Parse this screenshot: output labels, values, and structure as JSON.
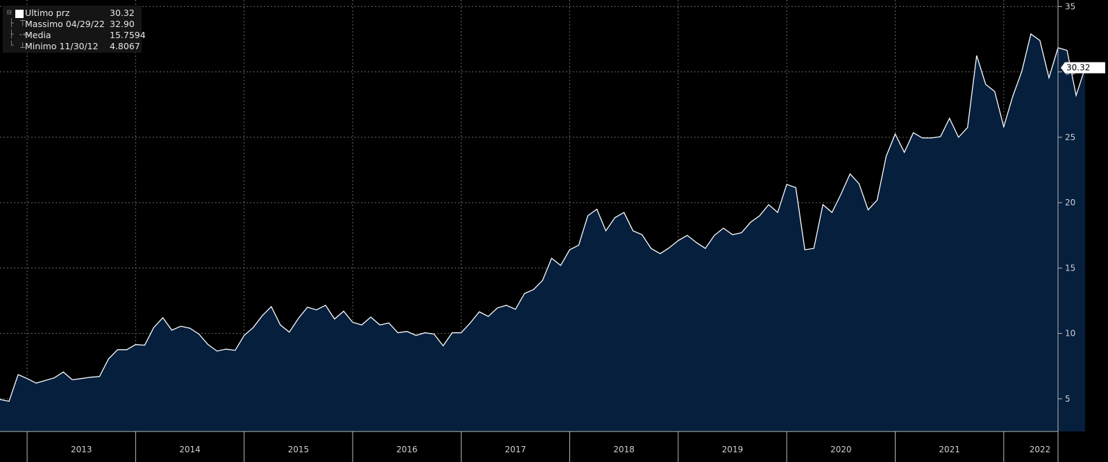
{
  "legend": {
    "last": {
      "label": "Ultimo prz",
      "value": "30.32"
    },
    "high": {
      "label": "Massimo 04/29/22",
      "value": "32.90"
    },
    "mean": {
      "label": "Media",
      "value": "15.7594"
    },
    "low": {
      "label": "Minimo 11/30/12",
      "value": "4.8067"
    }
  },
  "colors": {
    "background": "#000000",
    "line": "#ffffff",
    "area": "#061f3d",
    "grid": "#6b6b6b",
    "axis_text": "#d0d0d0"
  },
  "chart_data": {
    "type": "area",
    "x_label": "",
    "y_label": "",
    "x_ticks": [
      "2013",
      "2014",
      "2015",
      "2016",
      "2017",
      "2018",
      "2019",
      "2020",
      "2021",
      "2022"
    ],
    "y_ticks": [
      5,
      10,
      15,
      20,
      25,
      30,
      35
    ],
    "ylim": [
      2.5,
      35.5
    ],
    "xlim": [
      "2012-10",
      "2022-06"
    ],
    "grid": true,
    "y_axis_side": "right",
    "last_value_label": "30.32",
    "series": [
      {
        "name": "Ultimo prz",
        "x": [
          "2012-10",
          "2012-11",
          "2012-12",
          "2013-01",
          "2013-02",
          "2013-03",
          "2013-04",
          "2013-05",
          "2013-06",
          "2013-07",
          "2013-08",
          "2013-09",
          "2013-10",
          "2013-11",
          "2013-12",
          "2014-01",
          "2014-02",
          "2014-03",
          "2014-04",
          "2014-05",
          "2014-06",
          "2014-07",
          "2014-08",
          "2014-09",
          "2014-10",
          "2014-11",
          "2014-12",
          "2015-01",
          "2015-02",
          "2015-03",
          "2015-04",
          "2015-05",
          "2015-06",
          "2015-07",
          "2015-08",
          "2015-09",
          "2015-10",
          "2015-11",
          "2015-12",
          "2016-01",
          "2016-02",
          "2016-03",
          "2016-04",
          "2016-05",
          "2016-06",
          "2016-07",
          "2016-08",
          "2016-09",
          "2016-10",
          "2016-11",
          "2016-12",
          "2017-01",
          "2017-02",
          "2017-03",
          "2017-04",
          "2017-05",
          "2017-06",
          "2017-07",
          "2017-08",
          "2017-09",
          "2017-10",
          "2017-11",
          "2017-12",
          "2018-01",
          "2018-02",
          "2018-03",
          "2018-04",
          "2018-05",
          "2018-06",
          "2018-07",
          "2018-08",
          "2018-09",
          "2018-10",
          "2018-11",
          "2018-12",
          "2019-01",
          "2019-02",
          "2019-03",
          "2019-04",
          "2019-05",
          "2019-06",
          "2019-07",
          "2019-08",
          "2019-09",
          "2019-10",
          "2019-11",
          "2019-12",
          "2020-01",
          "2020-02",
          "2020-03",
          "2020-04",
          "2020-05",
          "2020-06",
          "2020-07",
          "2020-08",
          "2020-09",
          "2020-10",
          "2020-11",
          "2020-12",
          "2021-01",
          "2021-02",
          "2021-03",
          "2021-04",
          "2021-05",
          "2021-06",
          "2021-07",
          "2021-08",
          "2021-09",
          "2021-10",
          "2021-11",
          "2021-12",
          "2022-01",
          "2022-02",
          "2022-03",
          "2022-04",
          "2022-05",
          "2022-06",
          "2022-07",
          "2022-08",
          "2022-09",
          "2022-10"
        ],
        "y": [
          4.95,
          4.81,
          6.85,
          6.55,
          6.2,
          6.4,
          6.6,
          7.05,
          6.45,
          6.55,
          6.65,
          6.7,
          8.05,
          8.75,
          8.75,
          9.15,
          9.1,
          10.45,
          11.2,
          10.25,
          10.55,
          10.4,
          9.95,
          9.15,
          8.65,
          8.8,
          8.7,
          9.85,
          10.45,
          11.35,
          12.05,
          10.65,
          10.1,
          11.15,
          12.0,
          11.8,
          12.15,
          11.1,
          11.7,
          10.85,
          10.65,
          11.25,
          10.65,
          10.8,
          10.05,
          10.15,
          9.85,
          10.05,
          9.95,
          9.05,
          10.05,
          10.05,
          10.8,
          11.65,
          11.3,
          11.95,
          12.15,
          11.85,
          13.05,
          13.35,
          14.05,
          15.75,
          15.2,
          16.4,
          16.75,
          19.0,
          19.5,
          17.85,
          18.85,
          19.25,
          17.85,
          17.55,
          16.5,
          16.1,
          16.55,
          17.1,
          17.5,
          16.95,
          16.5,
          17.5,
          18.05,
          17.55,
          17.7,
          18.5,
          19.0,
          19.85,
          19.25,
          21.4,
          21.15,
          16.4,
          16.5,
          19.85,
          19.25,
          20.65,
          22.2,
          21.45,
          19.45,
          20.2,
          23.55,
          25.25,
          23.85,
          25.35,
          24.95,
          24.95,
          25.05,
          26.45,
          25.0,
          25.75,
          31.25,
          29.05,
          28.5,
          25.8,
          28.15,
          30.05,
          32.9,
          32.4,
          29.55,
          31.85,
          31.65,
          28.2,
          30.32
        ]
      }
    ]
  }
}
